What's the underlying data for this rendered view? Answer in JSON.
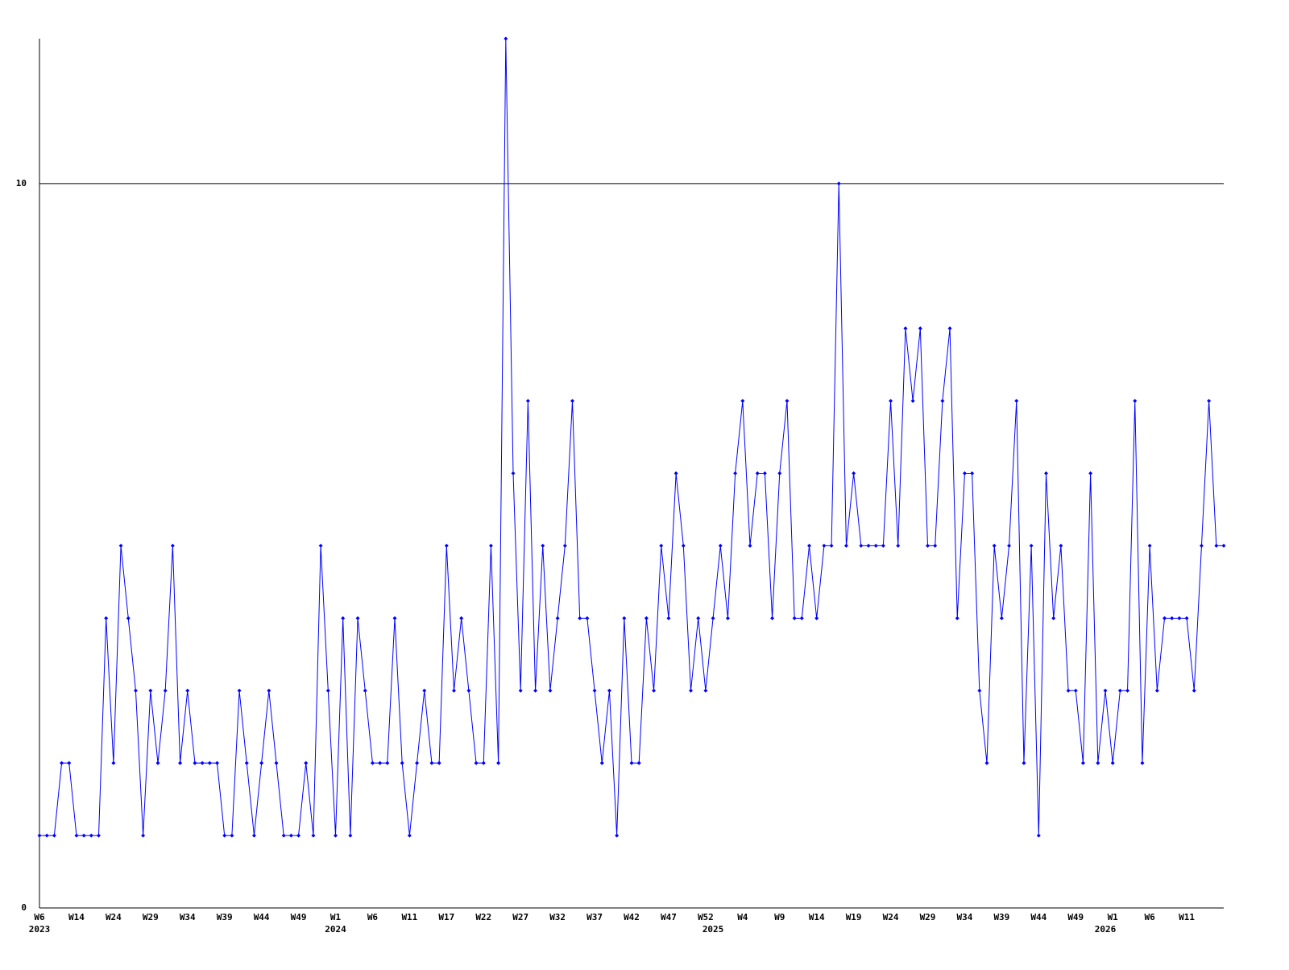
{
  "chart_data": {
    "type": "line",
    "categories": [
      "W6",
      null,
      null,
      null,
      null,
      "W14",
      null,
      null,
      null,
      null,
      "W24",
      null,
      null,
      null,
      null,
      "W29",
      null,
      null,
      null,
      null,
      "W34",
      null,
      null,
      null,
      null,
      "W39",
      null,
      null,
      null,
      null,
      "W44",
      null,
      null,
      null,
      null,
      "W49",
      null,
      null,
      null,
      null,
      "W1",
      null,
      null,
      null,
      null,
      "W6",
      null,
      null,
      null,
      null,
      "W11",
      null,
      null,
      null,
      null,
      "W17",
      null,
      null,
      null,
      null,
      "W22",
      null,
      null,
      null,
      null,
      "W27",
      null,
      null,
      null,
      null,
      "W32",
      null,
      null,
      null,
      null,
      "W37",
      null,
      null,
      null,
      null,
      "W42",
      null,
      null,
      null,
      null,
      "W47",
      null,
      null,
      null,
      null,
      "W52",
      null,
      null,
      null,
      null,
      "W4",
      null,
      null,
      null,
      null,
      "W9",
      null,
      null,
      null,
      null,
      "W14",
      null,
      null,
      null,
      null,
      "W19",
      null,
      null,
      null,
      null,
      "W24",
      null,
      null,
      null,
      null,
      "W29",
      null,
      null,
      null,
      null,
      "W34",
      null,
      null,
      null,
      null,
      "W39",
      null,
      null,
      null,
      null,
      "W44",
      null,
      null,
      null,
      null,
      "W49",
      null,
      null,
      null,
      null,
      "W1",
      null,
      null,
      null,
      null,
      "W6",
      null,
      null,
      null,
      null,
      "W11",
      null,
      null,
      null,
      null,
      null
    ],
    "years": [
      "2023",
      null,
      null,
      null,
      null,
      null,
      null,
      null,
      null,
      null,
      null,
      null,
      null,
      null,
      null,
      null,
      null,
      null,
      null,
      null,
      null,
      null,
      null,
      null,
      null,
      null,
      null,
      null,
      null,
      null,
      null,
      null,
      null,
      null,
      null,
      null,
      null,
      null,
      null,
      null,
      "2024",
      null,
      null,
      null,
      null,
      null,
      null,
      null,
      null,
      null,
      null,
      null,
      null,
      null,
      null,
      null,
      null,
      null,
      null,
      null,
      null,
      null,
      null,
      null,
      null,
      null,
      null,
      null,
      null,
      null,
      null,
      null,
      null,
      null,
      null,
      null,
      null,
      null,
      null,
      null,
      null,
      null,
      null,
      null,
      null,
      null,
      null,
      null,
      null,
      null,
      null,
      "2025",
      null,
      null,
      null,
      null,
      null,
      null,
      null,
      null,
      null,
      null,
      null,
      null,
      null,
      null,
      null,
      null,
      null,
      null,
      null,
      null,
      null,
      null,
      null,
      null,
      null,
      null,
      null,
      null,
      null,
      null,
      null,
      null,
      null,
      null,
      null,
      null,
      null,
      null,
      null,
      null,
      null,
      null,
      null,
      null,
      null,
      null,
      null,
      null,
      null,
      null,
      null,
      null,
      "2026",
      null,
      null,
      null,
      null,
      null,
      null,
      null,
      null,
      null,
      null,
      null,
      null,
      null,
      null,
      null,
      null
    ],
    "series": [
      {
        "color": "#0000ff",
        "values": [
          1,
          1,
          1,
          2,
          2,
          1,
          1,
          1,
          1,
          4,
          2,
          5,
          4,
          3,
          1,
          3,
          2,
          3,
          5,
          2,
          3,
          2,
          2,
          2,
          2,
          1,
          1,
          3,
          2,
          1,
          2,
          3,
          2,
          1,
          1,
          1,
          2,
          1,
          5,
          3,
          1,
          4,
          1,
          4,
          3,
          2,
          2,
          2,
          4,
          2,
          1,
          2,
          3,
          2,
          2,
          5,
          3,
          4,
          3,
          2,
          2,
          5,
          2,
          12,
          6,
          3,
          7,
          3,
          5,
          3,
          4,
          5,
          7,
          4,
          4,
          3,
          2,
          3,
          1,
          4,
          2,
          2,
          4,
          3,
          5,
          4,
          6,
          5,
          3,
          4,
          3,
          4,
          5,
          4,
          6,
          7,
          5,
          6,
          6,
          4,
          6,
          7,
          4,
          4,
          5,
          4,
          5,
          5,
          10,
          5,
          6,
          5,
          5,
          5,
          5,
          7,
          5,
          8,
          7,
          8,
          5,
          5,
          7,
          8,
          4,
          6,
          6,
          3,
          2,
          5,
          4,
          5,
          7,
          2,
          5,
          1,
          6,
          4,
          5,
          3,
          3,
          2,
          6,
          2,
          3,
          2,
          3,
          3,
          7,
          2,
          5,
          3,
          4,
          4,
          4,
          4,
          3,
          5,
          7,
          5,
          5
        ]
      }
    ],
    "ylim": [
      0,
      12
    ],
    "yticks": [
      0,
      10
    ],
    "grid": true
  }
}
